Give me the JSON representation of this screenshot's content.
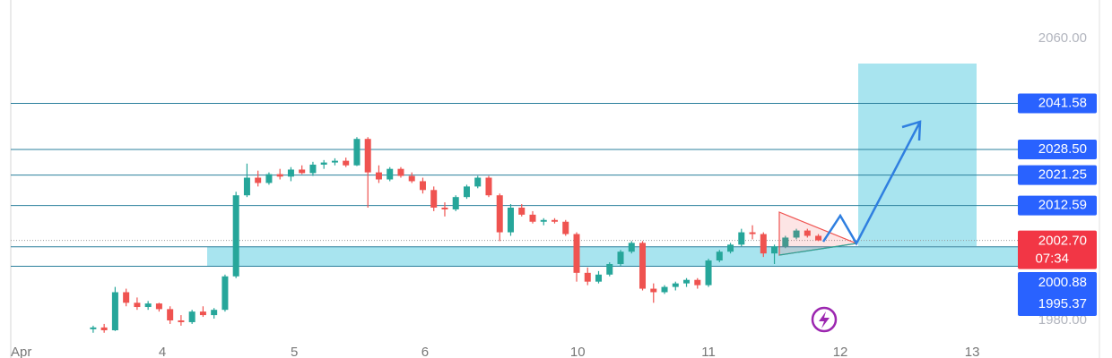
{
  "chart_data": {
    "type": "candlestick",
    "ylim": [
      1969.33,
      2070.92
    ],
    "yticks": [
      {
        "value": 2060,
        "label": "2060.00"
      },
      {
        "value": 1980,
        "label": "1980.00"
      }
    ],
    "xlim": [
      -7.5,
      91.5
    ],
    "xticks": [
      {
        "value": -7.5,
        "label": "Apr"
      },
      {
        "value": 6.3,
        "label": "4"
      },
      {
        "value": 18.3,
        "label": "5"
      },
      {
        "value": 30.2,
        "label": "6"
      },
      {
        "value": 44.1,
        "label": "10"
      },
      {
        "value": 56,
        "label": "11"
      },
      {
        "value": 68,
        "label": "12"
      },
      {
        "value": 80,
        "label": "13"
      }
    ],
    "up_color": "#26a69a",
    "down_color": "#ef5350",
    "open": [
      1977.5,
      1978.0,
      1977.2,
      1988.0,
      1985.0,
      1983.8,
      1984.8,
      1983.2,
      1980.0,
      1979.5,
      1982.5,
      1981.5,
      1983.0,
      1992.5,
      2015.5,
      2020.5,
      2019.0,
      2021.5,
      2020.8,
      2022.8,
      2021.8,
      2024.2,
      2024.8,
      2025.3,
      2024.0,
      2031.5,
      2022.0,
      2020.0,
      2023.0,
      2021.0,
      2019.5,
      2017.0,
      2012.0,
      2011.5,
      2015.0,
      2018.0,
      2020.5,
      2015.5,
      2005.0,
      2012.0,
      2010.0,
      2008.0,
      2008.5,
      2008.0,
      2004.5,
      1993.5,
      1991.0,
      1993.0,
      1996.0,
      1999.5,
      2002.0,
      1989.0,
      1988.0,
      1989.5,
      1990.5,
      1991.5,
      1990.0,
      1997.0,
      1999.5,
      2001.5,
      2005.0,
      2004.5,
      1999.0,
      2001.0,
      2003.5,
      2005.5,
      2004.0
    ],
    "high": [
      1978.5,
      1979.0,
      1989.5,
      1989.0,
      1986.5,
      1985.5,
      1985.0,
      1984.0,
      1981.5,
      1983.0,
      1984.0,
      1983.5,
      1993.0,
      2016.5,
      2024.5,
      2022.5,
      2022.0,
      2023.0,
      2023.5,
      2024.0,
      2025.0,
      2025.5,
      2026.0,
      2026.2,
      2032.0,
      2032.0,
      2024.0,
      2023.5,
      2023.5,
      2022.0,
      2020.5,
      2018.0,
      2013.5,
      2015.5,
      2018.5,
      2021.0,
      2021.0,
      2016.0,
      2013.0,
      2013.0,
      2011.0,
      2009.0,
      2009.0,
      2008.5,
      2005.0,
      1995.0,
      1994.0,
      1996.5,
      2000.0,
      2002.5,
      2002.5,
      1990.5,
      1990.0,
      1991.0,
      1992.0,
      1992.0,
      1997.5,
      2000.0,
      2002.0,
      2006.0,
      2007.0,
      2005.0,
      2001.5,
      2004.0,
      2006.0,
      2006.0,
      2004.5
    ],
    "low": [
      1976.5,
      1976.5,
      1977.0,
      1984.0,
      1983.0,
      1983.0,
      1982.5,
      1979.0,
      1978.5,
      1979.0,
      1981.0,
      1980.5,
      1982.5,
      1992.0,
      2015.0,
      2018.0,
      2018.5,
      2020.0,
      2019.5,
      2021.5,
      2021.0,
      2023.0,
      2024.0,
      2023.5,
      2023.8,
      2012.0,
      2019.0,
      2019.5,
      2020.5,
      2019.0,
      2016.0,
      2011.0,
      2009.5,
      2011.0,
      2014.5,
      2017.5,
      2015.0,
      2002.5,
      2004.0,
      2009.5,
      2007.5,
      2007.0,
      2007.5,
      2004.0,
      1991.0,
      1990.0,
      1990.5,
      1992.5,
      1995.5,
      1999.0,
      1988.5,
      1985.0,
      1987.5,
      1988.5,
      1989.5,
      1989.0,
      1989.5,
      1996.5,
      1999.0,
      2001.0,
      2003.0,
      1998.0,
      1996.0,
      2000.5,
      2003.0,
      2003.5,
      2002.5
    ],
    "close": [
      1978.0,
      1977.2,
      1988.0,
      1985.0,
      1983.8,
      1984.8,
      1983.2,
      1980.0,
      1979.5,
      1982.5,
      1981.5,
      1983.0,
      1992.5,
      2015.5,
      2020.5,
      2019.0,
      2021.5,
      2020.8,
      2022.8,
      2021.8,
      2024.2,
      2024.8,
      2025.3,
      2024.0,
      2031.5,
      2022.0,
      2020.0,
      2023.0,
      2021.0,
      2019.5,
      2017.0,
      2012.0,
      2011.5,
      2015.0,
      2018.0,
      2020.5,
      2015.5,
      2005.0,
      2012.0,
      2010.0,
      2008.0,
      2008.5,
      2008.0,
      2004.5,
      1993.5,
      1991.0,
      1993.0,
      1996.0,
      1999.5,
      2002.0,
      1989.0,
      1988.0,
      1989.5,
      1990.5,
      1991.5,
      1990.0,
      1997.0,
      1999.5,
      2001.5,
      2005.0,
      2004.5,
      1999.0,
      2001.0,
      2003.5,
      2005.5,
      2004.0,
      2002.7
    ],
    "levels": [
      2041.58,
      2028.5,
      2021.25,
      2012.59,
      2000.88,
      1995.37
    ],
    "level_labels": [
      "2041.58",
      "2028.50",
      "2021.25",
      "2012.59",
      "2000.88",
      "1995.37"
    ],
    "level_color": "#2a7f9c",
    "label_color": "#2962ff",
    "zone_color": "#a8e4ef",
    "last": {
      "value": 2002.7,
      "label": "2002.70",
      "countdown": "07:34",
      "color": "#f23645"
    }
  }
}
